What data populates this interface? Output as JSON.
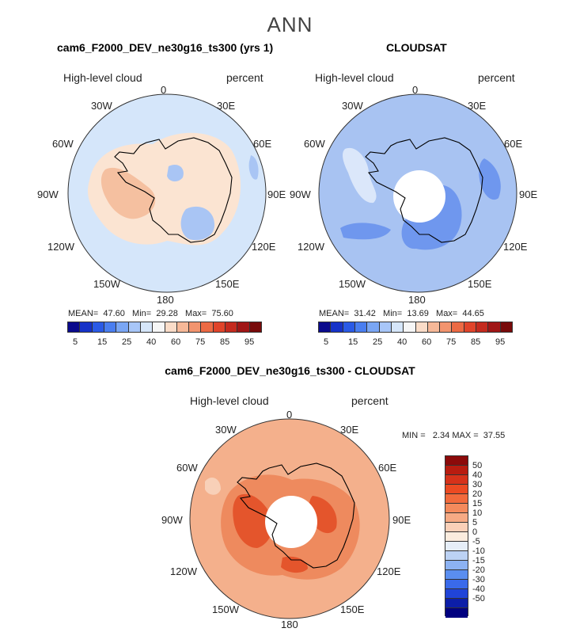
{
  "main_title": "ANN",
  "panels": [
    {
      "title": "cam6_F2000_DEV_ne30g16_ts300 (yrs 1)",
      "variable": "High-level cloud",
      "units": "percent",
      "stats": {
        "mean_label": "MEAN=",
        "mean": "47.60",
        "min_label": "Min=",
        "min": "29.28",
        "max_label": "Max=",
        "max": "75.60"
      }
    },
    {
      "title": "CLOUDSAT",
      "variable": "High-level cloud",
      "units": "percent",
      "stats": {
        "mean_label": "MEAN=",
        "mean": "31.42",
        "min_label": "Min=",
        "min": "13.69",
        "max_label": "Max=",
        "max": "44.65"
      }
    },
    {
      "title": "cam6_F2000_DEV_ne30g16_ts300 - CLOUDSAT",
      "variable": "High-level cloud",
      "units": "percent",
      "stats": {
        "min_label": "MIN =",
        "min": "2.34",
        "max_label": "MAX =",
        "max": "37.55"
      }
    }
  ],
  "longitude_labels": {
    "lon_0": "0",
    "lon_30e": "30E",
    "lon_60e": "60E",
    "lon_90e": "90E",
    "lon_120e": "120E",
    "lon_150e": "150E",
    "lon_180": "180",
    "lon_150w": "150W",
    "lon_120w": "120W",
    "lon_90w": "90W",
    "lon_60w": "60W",
    "lon_30w": "30W"
  },
  "abs_colorbar": {
    "labels": [
      "5",
      "15",
      "25",
      "40",
      "60",
      "75",
      "85",
      "95"
    ],
    "colors": [
      "#0a0a8c",
      "#1632c8",
      "#2a5ae6",
      "#4a7ef0",
      "#7aa6f4",
      "#a8c6f8",
      "#d6e6fa",
      "#f6f6f6",
      "#fadcc8",
      "#f6b898",
      "#f2946e",
      "#ec6a44",
      "#e0442a",
      "#c42a1e",
      "#a01616",
      "#780a0a"
    ]
  },
  "diff_colorbar": {
    "labels": [
      "50",
      "40",
      "30",
      "20",
      "15",
      "10",
      "5",
      "0",
      "-5",
      "-10",
      "-15",
      "-20",
      "-30",
      "-40",
      "-50"
    ],
    "colors": [
      "#8c0a0a",
      "#b81c10",
      "#d6321a",
      "#ec4a22",
      "#f26a3c",
      "#f48a5c",
      "#f6aa84",
      "#fad0b8",
      "#fbecde",
      "#e6eef8",
      "#bcd2f4",
      "#8cb2f2",
      "#5a8ef0",
      "#3a6aea",
      "#2044d8",
      "#0c1ea8",
      "#000080"
    ]
  },
  "colors": {
    "ocean_model": "#d5e6fa",
    "land_model": "#fbe4d2",
    "warm_model": "#f5c0a0",
    "cool_model": "#a9c5f4",
    "base_obs": "#a8c3f2",
    "obs_dark": "#6f97ee",
    "obs_light": "#dbe7fa",
    "diff_base": "#f4b08c",
    "diff_mid": "#ee8a5e",
    "diff_dark": "#e4552c"
  }
}
